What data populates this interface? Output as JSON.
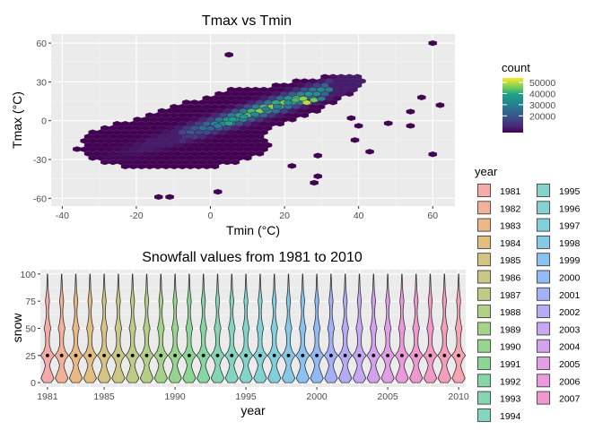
{
  "colors": {
    "panel_background": "#ebebeb",
    "grid_major": "#ffffff",
    "grid_minor": "#f5f5f5",
    "hex_outline": "#3b0f4a",
    "violin_outline": "#333333",
    "median_point": "#000000"
  },
  "chart_data": [
    {
      "type": "heatmap",
      "subtype": "hexbin",
      "title": "Tmax vs Tmin",
      "xlabel": "Tmin (°C)",
      "ylabel": "Tmax (°C)",
      "xlim": [
        -43,
        66
      ],
      "ylim": [
        -66,
        67
      ],
      "xticks": [
        -40,
        -20,
        0,
        20,
        40,
        60
      ],
      "xtick_labels": [
        "-40",
        "-20",
        "0",
        "20",
        "40",
        "60"
      ],
      "yticks": [
        -60,
        -30,
        0,
        30,
        60
      ],
      "ytick_labels": [
        "-60",
        "-30",
        "0",
        "30",
        "60"
      ],
      "grid": true,
      "colorbar": {
        "title": "count",
        "range": [
          5000,
          54000
        ],
        "ticks": [
          20000,
          30000,
          40000,
          50000
        ],
        "tick_labels": [
          "20000",
          "30000",
          "40000",
          "50000"
        ],
        "colormap": "viridis"
      },
      "hex_size": [
        2.2,
        3.3
      ],
      "points": [
        {
          "x": 5,
          "y": -2,
          "count": 40000
        },
        {
          "x": 6,
          "y": 1,
          "count": 38000
        },
        {
          "x": 9,
          "y": 3,
          "count": 36000
        },
        {
          "x": 12,
          "y": 5,
          "count": 33000
        },
        {
          "x": 15,
          "y": 9,
          "count": 30000
        },
        {
          "x": 18,
          "y": 11,
          "count": 31000
        },
        {
          "x": 21,
          "y": 14,
          "count": 35000
        },
        {
          "x": 23,
          "y": 16,
          "count": 42000
        },
        {
          "x": 25,
          "y": 17,
          "count": 47000
        },
        {
          "x": 26,
          "y": 14,
          "count": 50000
        },
        {
          "x": 28,
          "y": 16,
          "count": 45000
        },
        {
          "x": 30,
          "y": 17,
          "count": 30000
        },
        {
          "x": 2,
          "y": -4,
          "count": 30000
        },
        {
          "x": 0,
          "y": -6,
          "count": 24000
        },
        {
          "x": -3,
          "y": -9,
          "count": 18000
        },
        {
          "x": -6,
          "y": -12,
          "count": 14000
        },
        {
          "x": 60,
          "y": 60,
          "count": 900
        },
        {
          "x": 5,
          "y": 51,
          "count": 600
        },
        {
          "x": -36,
          "y": -22,
          "count": 800
        },
        {
          "x": 57,
          "y": 18,
          "count": 700
        },
        {
          "x": 54,
          "y": 7,
          "count": 700
        },
        {
          "x": 62,
          "y": 12,
          "count": 600
        },
        {
          "x": 48,
          "y": -2,
          "count": 500
        },
        {
          "x": 54,
          "y": -4,
          "count": 500
        },
        {
          "x": 40,
          "y": -4,
          "count": 500
        },
        {
          "x": 60,
          "y": -26,
          "count": 600
        },
        {
          "x": 43,
          "y": -24,
          "count": 600
        },
        {
          "x": 29,
          "y": -27,
          "count": 500
        },
        {
          "x": 28,
          "y": -48,
          "count": 600
        },
        {
          "x": 29,
          "y": -43,
          "count": 500
        },
        {
          "x": 22,
          "y": -35,
          "count": 500
        },
        {
          "x": -14,
          "y": -59,
          "count": 600
        },
        {
          "x": -11,
          "y": -59,
          "count": 600
        },
        {
          "x": 2,
          "y": -55,
          "count": 500
        },
        {
          "x": 38,
          "y": 2,
          "count": 500
        },
        {
          "x": 39,
          "y": -15,
          "count": 500
        }
      ]
    },
    {
      "type": "violin",
      "title": "Snowfall values from 1981 to 2010",
      "xlabel": "year",
      "ylabel": "snow",
      "ylim": [
        -4,
        104
      ],
      "xlim": [
        1980.5,
        2010.5
      ],
      "xticks": [
        1981,
        1985,
        1990,
        1995,
        2000,
        2005,
        2010
      ],
      "xtick_labels": [
        "1981",
        "1985",
        "1990",
        "1995",
        "2000",
        "2005",
        "2010"
      ],
      "yticks": [
        0,
        25,
        50,
        75,
        100
      ],
      "ytick_labels": [
        "0",
        "25",
        "50",
        "75",
        "100"
      ],
      "grid": true,
      "categories": [
        1981,
        1982,
        1983,
        1984,
        1985,
        1986,
        1987,
        1988,
        1989,
        1990,
        1991,
        1992,
        1993,
        1994,
        1995,
        1996,
        1997,
        1998,
        1999,
        2000,
        2001,
        2002,
        2003,
        2004,
        2005,
        2006,
        2007,
        2008,
        2009,
        2010
      ],
      "median": 25,
      "range": [
        0,
        100
      ],
      "density_profile": [
        {
          "y": 0,
          "w": 0.55
        },
        {
          "y": 4,
          "w": 0.95
        },
        {
          "y": 8,
          "w": 0.7
        },
        {
          "y": 12,
          "w": 0.45
        },
        {
          "y": 16,
          "w": 0.3
        },
        {
          "y": 21,
          "w": 0.55
        },
        {
          "y": 25,
          "w": 1.0
        },
        {
          "y": 29,
          "w": 0.55
        },
        {
          "y": 34,
          "w": 0.3
        },
        {
          "y": 40,
          "w": 0.26
        },
        {
          "y": 46,
          "w": 0.34
        },
        {
          "y": 50,
          "w": 0.5
        },
        {
          "y": 54,
          "w": 0.34
        },
        {
          "y": 60,
          "w": 0.2
        },
        {
          "y": 66,
          "w": 0.16
        },
        {
          "y": 71,
          "w": 0.22
        },
        {
          "y": 75,
          "w": 0.3
        },
        {
          "y": 79,
          "w": 0.22
        },
        {
          "y": 85,
          "w": 0.12
        },
        {
          "y": 92,
          "w": 0.08
        },
        {
          "y": 100,
          "w": 0.02
        }
      ],
      "legend": {
        "title": "year",
        "placement": "right",
        "entries": [
          {
            "label": "1981",
            "color": "#f4a6a2"
          },
          {
            "label": "1982",
            "color": "#f1ae93"
          },
          {
            "label": "1983",
            "color": "#eab57f"
          },
          {
            "label": "1984",
            "color": "#e0bc7a"
          },
          {
            "label": "1985",
            "color": "#d4c17c"
          },
          {
            "label": "1986",
            "color": "#c8c57e"
          },
          {
            "label": "1987",
            "color": "#bcc97f"
          },
          {
            "label": "1988",
            "color": "#aece80"
          },
          {
            "label": "1989",
            "color": "#9fd183"
          },
          {
            "label": "1990",
            "color": "#92d388"
          },
          {
            "label": "1991",
            "color": "#86d58f"
          },
          {
            "label": "1992",
            "color": "#80d4a1"
          },
          {
            "label": "1993",
            "color": "#7fd4b0"
          },
          {
            "label": "1994",
            "color": "#7ed3bd"
          },
          {
            "label": "1995",
            "color": "#7dd2c8"
          },
          {
            "label": "1996",
            "color": "#7dd0d1"
          },
          {
            "label": "1997",
            "color": "#7ccddb"
          },
          {
            "label": "1998",
            "color": "#7fc7e6"
          },
          {
            "label": "1999",
            "color": "#84c0ef"
          },
          {
            "label": "2000",
            "color": "#8cb7f4"
          },
          {
            "label": "2001",
            "color": "#9eaef6"
          },
          {
            "label": "2002",
            "color": "#b2a8f5"
          },
          {
            "label": "2003",
            "color": "#c4a3f1"
          },
          {
            "label": "2004",
            "color": "#d39eec"
          },
          {
            "label": "2005",
            "color": "#e09ae6"
          },
          {
            "label": "2006",
            "color": "#ea96db"
          },
          {
            "label": "2007",
            "color": "#ef94cf"
          }
        ]
      },
      "series_colors": [
        "#f4a6a2",
        "#f1ae93",
        "#eab57f",
        "#e0bc7a",
        "#d4c17c",
        "#c8c57e",
        "#bcc97f",
        "#aece80",
        "#9fd183",
        "#92d388",
        "#86d58f",
        "#80d4a1",
        "#7fd4b0",
        "#7ed3bd",
        "#7dd2c8",
        "#7dd0d1",
        "#7ccddb",
        "#7fc7e6",
        "#84c0ef",
        "#8cb7f4",
        "#9eaef6",
        "#b2a8f5",
        "#c4a3f1",
        "#d39eec",
        "#e09ae6",
        "#ea96db",
        "#ef94cf",
        "#f296c4",
        "#f49ab8",
        "#f5a0ad"
      ]
    }
  ]
}
